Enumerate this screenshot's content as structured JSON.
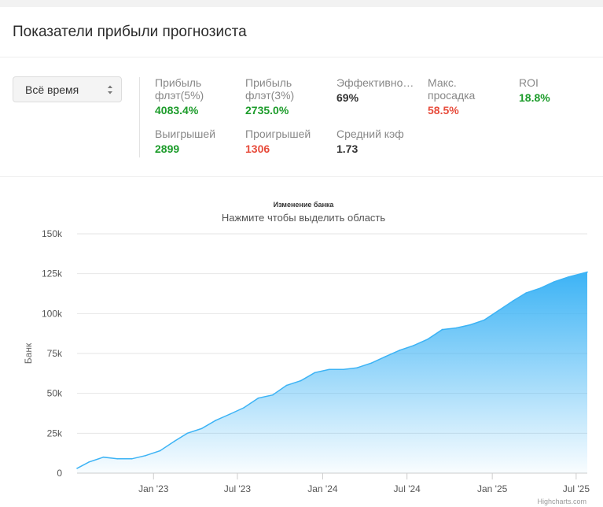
{
  "page": {
    "title": "Показатели прибыли прогнозиста"
  },
  "period_select": {
    "value": "Всё время",
    "icon": "up-down-arrows-icon"
  },
  "stats": [
    {
      "label_line1": "Прибыль",
      "label_line2": "флэт(5%)",
      "value": "4083.4%",
      "color": "#1d9c2b"
    },
    {
      "label_line1": "Прибыль",
      "label_line2": "флэт(3%)",
      "value": "2735.0%",
      "color": "#1d9c2b"
    },
    {
      "label_line1": "Эффективно…",
      "label_line2": "",
      "value": "69%",
      "color": "#333333"
    },
    {
      "label_line1": "Макс.",
      "label_line2": "просадка",
      "value": "58.5%",
      "color": "#e74c3c"
    },
    {
      "label_line1": "ROI",
      "label_line2": "",
      "value": "18.8%",
      "color": "#1d9c2b"
    },
    {
      "label_line1": "Выигрышей",
      "label_line2": "",
      "value": "2899",
      "color": "#1d9c2b"
    },
    {
      "label_line1": "Проигрышей",
      "label_line2": "",
      "value": "1306",
      "color": "#e74c3c"
    },
    {
      "label_line1": "Средний кэф",
      "label_line2": "",
      "value": "1.73",
      "color": "#333333"
    }
  ],
  "chart_data": {
    "type": "area",
    "title": "Изменение банка",
    "subtitle": "Нажмите чтобы выделить область",
    "ylabel": "Банк",
    "xlabel": "",
    "ylim": [
      0,
      150000
    ],
    "y_ticks": [
      0,
      25000,
      50000,
      75000,
      100000,
      125000,
      150000
    ],
    "y_tick_labels": [
      "0",
      "25k",
      "50k",
      "75k",
      "100k",
      "125k",
      "150k"
    ],
    "x_range": [
      "2022-07-20",
      "2025-07-25"
    ],
    "x_ticks": [
      "2023-01-01",
      "2023-07-01",
      "2024-01-01",
      "2024-07-01",
      "2025-01-01",
      "2025-07-01"
    ],
    "x_tick_labels": [
      "Jan '23",
      "Jul '23",
      "Jan '24",
      "Jul '24",
      "Jan '25",
      "Jul '25"
    ],
    "grid": true,
    "legend": "none",
    "credits": "Highcharts.com",
    "color": "#3cb3f5",
    "series": [
      {
        "name": "Банк",
        "x": [
          "2022-07-20",
          "2022-08-15",
          "2022-09-15",
          "2022-10-15",
          "2022-11-15",
          "2022-12-15",
          "2023-01-15",
          "2023-02-15",
          "2023-03-15",
          "2023-04-15",
          "2023-05-15",
          "2023-06-15",
          "2023-07-15",
          "2023-08-15",
          "2023-09-15",
          "2023-10-15",
          "2023-11-15",
          "2023-12-15",
          "2024-01-15",
          "2024-02-15",
          "2024-03-15",
          "2024-04-15",
          "2024-05-15",
          "2024-06-15",
          "2024-07-15",
          "2024-08-15",
          "2024-09-15",
          "2024-10-15",
          "2024-11-15",
          "2024-12-15",
          "2025-01-15",
          "2025-02-15",
          "2025-03-15",
          "2025-04-15",
          "2025-05-15",
          "2025-06-15",
          "2025-07-25"
        ],
        "values": [
          3000,
          7000,
          10000,
          9000,
          9000,
          11000,
          14000,
          20000,
          25000,
          28000,
          33000,
          37000,
          41000,
          47000,
          49000,
          55000,
          58000,
          63000,
          65000,
          65000,
          66000,
          69000,
          73000,
          77000,
          80000,
          84000,
          90000,
          91000,
          93000,
          96000,
          102000,
          108000,
          113000,
          116000,
          120000,
          123000,
          126000
        ]
      }
    ]
  }
}
